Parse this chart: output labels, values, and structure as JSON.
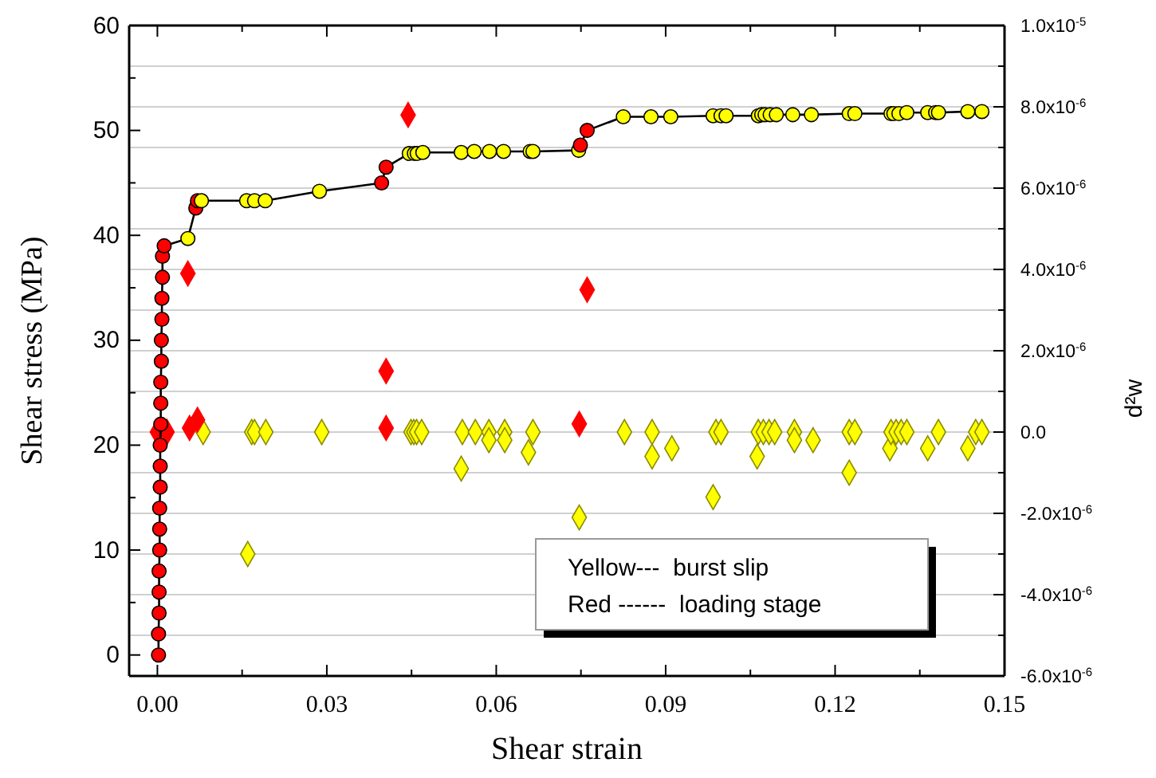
{
  "chart_data": {
    "type": "line",
    "xlabel": "Shear strain",
    "ylabel": "Shear stress (MPa)",
    "y2label": "d²w",
    "xlim": [
      -0.005,
      0.15
    ],
    "xticks": [
      {
        "value": 0,
        "label": "0.00"
      },
      {
        "value": 0.015,
        "label": null
      },
      {
        "value": 0.03,
        "label": "0.03"
      },
      {
        "value": 0.045,
        "label": null
      },
      {
        "value": 0.06,
        "label": "0.06"
      },
      {
        "value": 0.075,
        "label": null
      },
      {
        "value": 0.09,
        "label": "0.09"
      },
      {
        "value": 0.105,
        "label": null
      },
      {
        "value": 0.12,
        "label": "0.12"
      },
      {
        "value": 0.135,
        "label": null
      },
      {
        "value": 0.15,
        "label": "0.15"
      }
    ],
    "ylim": [
      -2,
      60
    ],
    "yticks": [
      0,
      {
        "value": 5,
        "label": null
      },
      10,
      {
        "value": 15,
        "label": null
      },
      20,
      {
        "value": 25,
        "label": null
      },
      30,
      {
        "value": 35,
        "label": null
      },
      40,
      {
        "value": 45,
        "label": null
      },
      50,
      {
        "value": 55,
        "label": null
      },
      60
    ],
    "y2lim": [
      -6e-06,
      1e-05
    ],
    "y2ticks": [
      {
        "value": -6e-06,
        "label": "-6.0x10$^{-6}$"
      },
      {
        "value": -5e-06,
        "label": null
      },
      {
        "value": -4e-06,
        "label": "-4.0x10$^{-6}$"
      },
      {
        "value": -3e-06,
        "label": null
      },
      {
        "value": -2e-06,
        "label": "-2.0x10$^{-6}$"
      },
      {
        "value": -1e-06,
        "label": null
      },
      {
        "value": 0,
        "label": "0.0"
      },
      {
        "value": 1e-06,
        "label": null
      },
      {
        "value": 2e-06,
        "label": "2.0x10$^{-6}$"
      },
      {
        "value": 3e-06,
        "label": null
      },
      {
        "value": 4e-06,
        "label": "4.0x10$^{-6}$"
      },
      {
        "value": 5e-06,
        "label": null
      },
      {
        "value": 6e-06,
        "label": "6.0x10$^{-6}$"
      },
      {
        "value": 7e-06,
        "label": null
      },
      {
        "value": 8e-06,
        "label": "8.0x10$^{-6}$"
      },
      {
        "value": 9e-06,
        "label": null
      },
      {
        "value": 1e-05,
        "label": "1.0x10$^{-5}$"
      }
    ],
    "grid": "y2",
    "annotations": [
      "Yellow---  burst slip",
      "Red ------  loading stage"
    ],
    "series": [
      {
        "color": "#000000",
        "marker": "circle",
        "x": [
          0.0002,
          0.0002,
          0.0003,
          0.0003,
          0.0003,
          0.0004,
          0.0004,
          0.0004,
          0.0005,
          0.0005,
          0.0005,
          0.0006,
          0.0006,
          0.0006,
          0.0007,
          0.0007,
          0.0008,
          0.0008,
          0.0009,
          0.0009,
          0.0012,
          0.0054,
          0.0068,
          0.0071,
          0.0078,
          0.0158,
          0.0172,
          0.0191,
          0.0287,
          0.0397,
          0.0405,
          0.0446,
          0.0455,
          0.046,
          0.047,
          0.0538,
          0.0561,
          0.0588,
          0.0613,
          0.066,
          0.0665,
          0.0746,
          0.0749,
          0.0761,
          0.0825,
          0.0874,
          0.0909,
          0.0984,
          0.0998,
          0.1007,
          0.1064,
          0.107,
          0.1076,
          0.1085,
          0.1096,
          0.1125,
          0.1158,
          0.1225,
          0.1235,
          0.1299,
          0.1304,
          0.1313,
          0.1327,
          0.1364,
          0.1378,
          0.1383,
          0.1435,
          0.146
        ],
        "values": [
          0,
          2,
          4,
          6,
          8,
          10,
          12,
          14,
          16,
          18,
          20,
          22,
          24,
          26,
          28,
          30,
          32,
          34,
          36,
          38,
          39.0,
          39.7,
          42.6,
          43.3,
          43.3,
          43.3,
          43.3,
          43.3,
          44.2,
          45.0,
          46.5,
          47.8,
          47.8,
          47.8,
          47.9,
          47.9,
          48.0,
          48.0,
          48.0,
          48.0,
          48.0,
          48.1,
          48.6,
          50.0,
          51.3,
          51.3,
          51.3,
          51.4,
          51.4,
          51.4,
          51.4,
          51.5,
          51.5,
          51.5,
          51.5,
          51.5,
          51.5,
          51.6,
          51.6,
          51.6,
          51.6,
          51.6,
          51.7,
          51.7,
          51.7,
          51.7,
          51.8,
          51.8
        ],
        "colors": [
          "#ff0000",
          "#ff0000",
          "#ff0000",
          "#ff0000",
          "#ff0000",
          "#ff0000",
          "#ff0000",
          "#ff0000",
          "#ff0000",
          "#ff0000",
          "#ff0000",
          "#ff0000",
          "#ff0000",
          "#ff0000",
          "#ff0000",
          "#ff0000",
          "#ff0000",
          "#ff0000",
          "#ff0000",
          "#ff0000",
          "#ff0000",
          "#ffff00",
          "#ff0000",
          "#ff0000",
          "#ffff00",
          "#ffff00",
          "#ffff00",
          "#ffff00",
          "#ffff00",
          "#ff0000",
          "#ff0000",
          "#ffff00",
          "#ffff00",
          "#ffff00",
          "#ffff00",
          "#ffff00",
          "#ffff00",
          "#ffff00",
          "#ffff00",
          "#ffff00",
          "#ffff00",
          "#ffff00",
          "#ff0000",
          "#ff0000",
          "#ffff00",
          "#ffff00",
          "#ffff00",
          "#ffff00",
          "#ffff00",
          "#ffff00",
          "#ffff00",
          "#ffff00",
          "#ffff00",
          "#ffff00",
          "#ffff00",
          "#ffff00",
          "#ffff00",
          "#ffff00",
          "#ffff00",
          "#ffff00",
          "#ffff00",
          "#ffff00",
          "#ffff00",
          "#ffff00",
          "#ffff00",
          "#ffff00",
          "#ffff00",
          "#ffff00"
        ]
      },
      {
        "type": "scatter",
        "axis": "y2",
        "color": "#ffff00",
        "marker": "diamond",
        "x": [
          0.0081,
          0.016,
          0.0167,
          0.0172,
          0.0192,
          0.0291,
          0.0449,
          0.0454,
          0.0459,
          0.0468,
          0.0538,
          0.054,
          0.0563,
          0.0587,
          0.0587,
          0.0615,
          0.0615,
          0.0657,
          0.0665,
          0.0747,
          0.0827,
          0.0876,
          0.0876,
          0.0911,
          0.0984,
          0.0989,
          0.0998,
          0.1062,
          0.1064,
          0.1073,
          0.1083,
          0.1093,
          0.1128,
          0.1128,
          0.1161,
          0.1225,
          0.1225,
          0.1235,
          0.1297,
          0.1299,
          0.1308,
          0.1317,
          0.1327,
          0.1364,
          0.1383,
          0.1435,
          0.1449,
          0.146
        ],
        "values": [
          0,
          -3e-06,
          0,
          0,
          0,
          0,
          0,
          0,
          0,
          0,
          -9e-07,
          0,
          0,
          0,
          -2e-07,
          0,
          -2e-07,
          -5e-07,
          0,
          -2.1e-06,
          0,
          0,
          -6e-07,
          -4e-07,
          -1.6e-06,
          0,
          0,
          -6e-07,
          0,
          0,
          0,
          0,
          0,
          -2e-07,
          -2e-07,
          0,
          -1e-06,
          0,
          -4e-07,
          0,
          0,
          0,
          0,
          -4e-07,
          0,
          -4e-07,
          0,
          0
        ]
      },
      {
        "type": "scatter",
        "axis": "y2",
        "color": "#ff0000",
        "marker": "diamond",
        "x": [
          0.0,
          0.0017,
          0.0054,
          0.0057,
          0.0071,
          0.0405,
          0.0405,
          0.0444,
          0.0747,
          0.0761
        ],
        "values": [
          0,
          0,
          3.9e-06,
          1e-07,
          3e-07,
          1.5e-06,
          1e-07,
          7.8e-06,
          2e-07,
          3.5e-06
        ]
      }
    ]
  }
}
